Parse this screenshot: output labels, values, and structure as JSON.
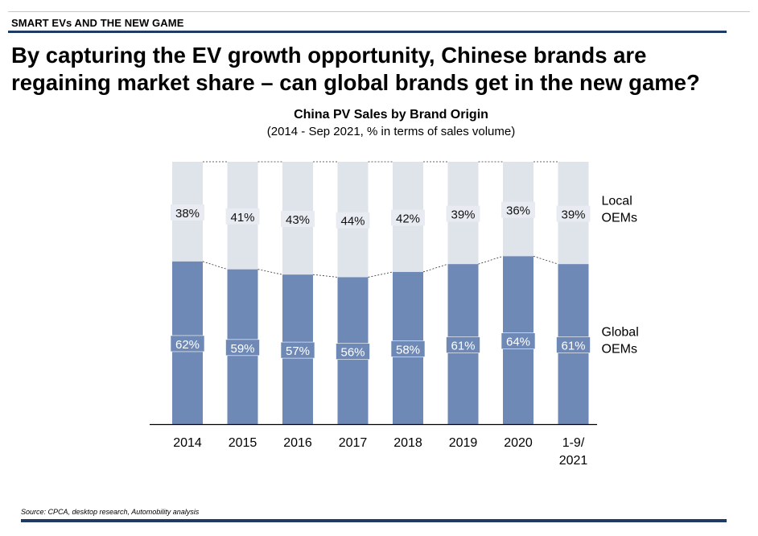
{
  "header": {
    "section_label": "SMART EVs AND THE NEW GAME",
    "headline_line1": "By capturing the EV growth opportunity, Chinese brands are",
    "headline_line2": "regaining market share – can global brands get in the new game?"
  },
  "colors": {
    "accent": "#1f3b63",
    "local": "#dfe3ea",
    "global": "#6f89b6",
    "label_local_bg": "#e8ecf2",
    "label_global_bg": "#6f89b6"
  },
  "chart_data": {
    "type": "bar",
    "stacked": true,
    "title": "China PV Sales by Brand Origin",
    "subtitle": "(2014 - Sep 2021, % in terms of sales volume)",
    "categories": [
      "2014",
      "2015",
      "2016",
      "2017",
      "2018",
      "2019",
      "2020",
      "1-9/\n2021"
    ],
    "series": [
      {
        "name": "Global\nOEMs",
        "values": [
          62,
          59,
          57,
          56,
          58,
          61,
          64,
          61
        ],
        "color": "#6f89b6"
      },
      {
        "name": "Local\nOEMs",
        "values": [
          38,
          41,
          43,
          44,
          42,
          39,
          36,
          39
        ],
        "color": "#dfe3ea"
      }
    ],
    "ylim": [
      0,
      100
    ],
    "unit": "%",
    "grid": false,
    "legend": "right"
  },
  "footer": {
    "source": "Source: CPCA, desktop research, Automobility analysis"
  }
}
